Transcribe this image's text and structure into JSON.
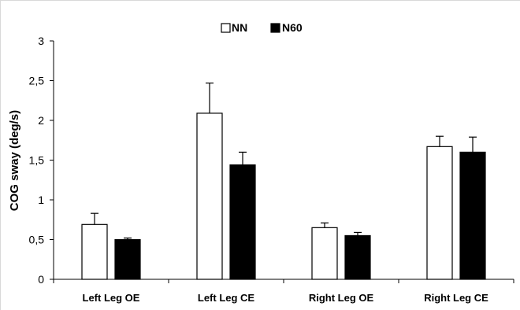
{
  "chart_data": {
    "type": "bar",
    "ylabel": "COG sway (deg/s)",
    "xlabel": "",
    "ylim": [
      0,
      3
    ],
    "y_ticks": [
      "0",
      "0,5",
      "1",
      "1,5",
      "2",
      "2,5",
      "3"
    ],
    "y_tick_values": [
      0,
      0.5,
      1,
      1.5,
      2,
      2.5,
      3
    ],
    "categories": [
      "Left Leg OE",
      "Left Leg CE",
      "Right Leg OE",
      "Right Leg CE"
    ],
    "series": [
      {
        "name": "NN",
        "color": "#ffffff",
        "values": [
          0.69,
          2.09,
          0.65,
          1.67
        ],
        "errors": [
          0.14,
          0.38,
          0.06,
          0.13
        ]
      },
      {
        "name": "N60",
        "color": "#000000",
        "values": [
          0.5,
          1.44,
          0.55,
          1.6
        ],
        "errors": [
          0.02,
          0.16,
          0.04,
          0.19
        ]
      }
    ],
    "legend_position": "top-center",
    "grid": false
  }
}
